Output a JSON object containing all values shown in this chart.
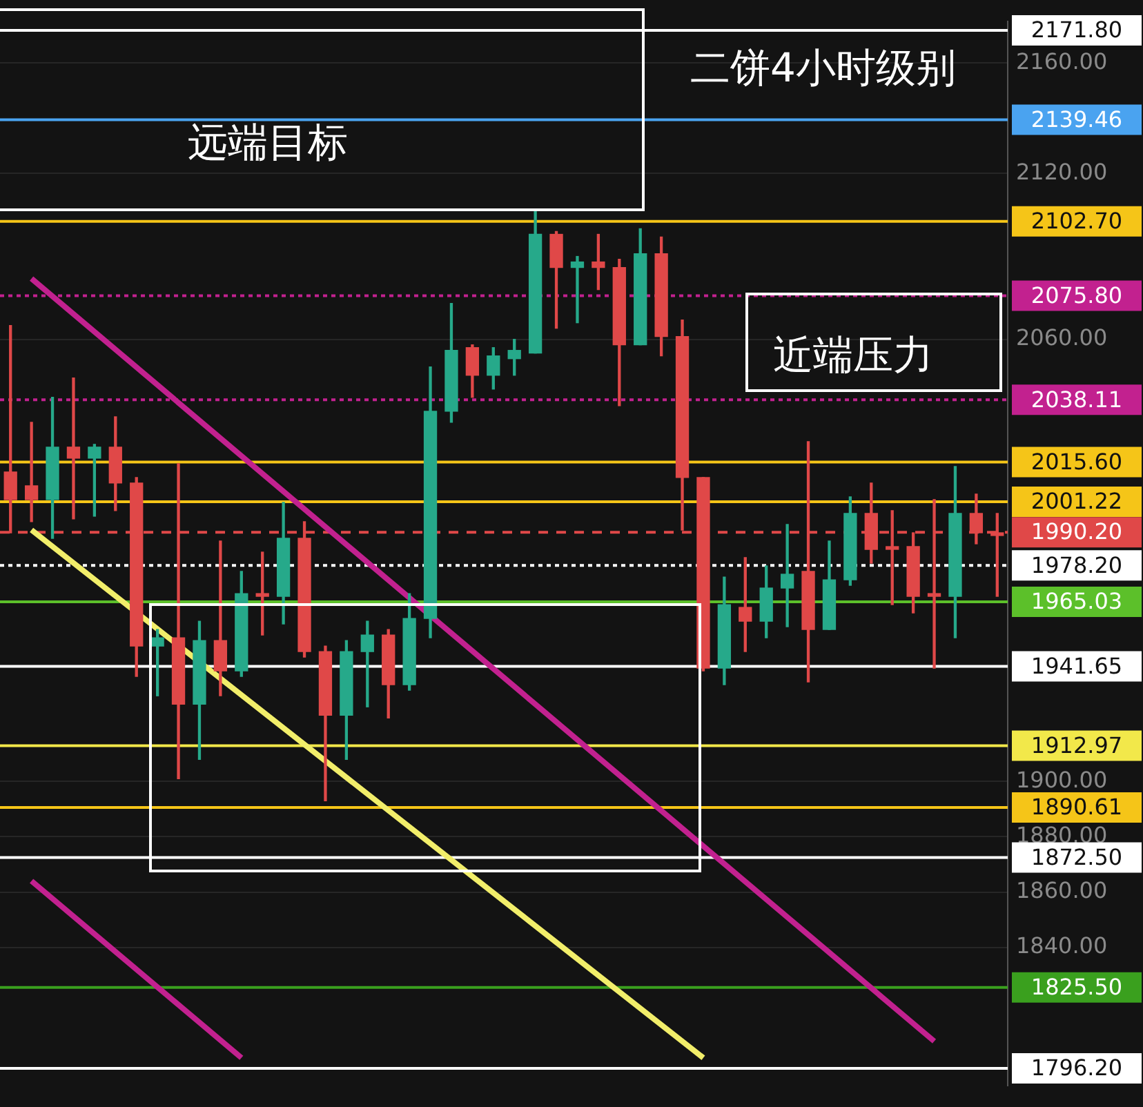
{
  "chart_data": {
    "type": "candlestick",
    "title": "二饼4小时级别",
    "annotations": [
      "远端目标",
      "近端压力"
    ],
    "categories": [
      null,
      null,
      null,
      null,
      null,
      null,
      null,
      null,
      null,
      null,
      null,
      null,
      null,
      null,
      null,
      null,
      null,
      null,
      null,
      null,
      null,
      null,
      null,
      null,
      null,
      null,
      null,
      null,
      null,
      null,
      null,
      null,
      null,
      null,
      null,
      null,
      null,
      null,
      null,
      null,
      null,
      null,
      null,
      null,
      null,
      null,
      null,
      null
    ],
    "ohlc": [
      [
        2012,
        2065,
        1990,
        2002
      ],
      [
        2007,
        2030,
        1994,
        2002
      ],
      [
        2002,
        2039,
        1988,
        2021
      ],
      [
        2021,
        2046,
        1995,
        2017
      ],
      [
        2017,
        2022,
        1996,
        2021
      ],
      [
        2021,
        2032,
        1998,
        2008
      ],
      [
        2008,
        2010,
        1938,
        1949
      ],
      [
        1949,
        1955,
        1931,
        1952
      ],
      [
        1952,
        2015,
        1901,
        1928
      ],
      [
        1928,
        1958,
        1908,
        1951
      ],
      [
        1951,
        1987,
        1931,
        1940
      ],
      [
        1940,
        1976,
        1938,
        1968
      ],
      [
        1968,
        1983,
        1953,
        1967
      ],
      [
        1967,
        2001,
        1957,
        1988
      ],
      [
        1988,
        1994,
        1945,
        1947
      ],
      [
        1947,
        1949,
        1893,
        1924
      ],
      [
        1924,
        1951,
        1908,
        1947
      ],
      [
        1947,
        1958,
        1927,
        1953
      ],
      [
        1953,
        1955,
        1923,
        1935
      ],
      [
        1935,
        1968,
        1933,
        1959
      ],
      [
        1959,
        2050,
        1952,
        2034
      ],
      [
        2034,
        2073,
        2030,
        2056
      ],
      [
        2057,
        2058,
        2039,
        2047
      ],
      [
        2047,
        2057,
        2042,
        2054
      ],
      [
        2053,
        2060,
        2047,
        2056
      ],
      [
        2055,
        2107,
        2055,
        2098
      ],
      [
        2098,
        2099,
        2064,
        2086
      ],
      [
        2086,
        2090,
        2066,
        2088
      ],
      [
        2088,
        2098,
        2078,
        2086
      ],
      [
        2086,
        2089,
        2036,
        2058
      ],
      [
        2058,
        2100,
        2058,
        2091
      ],
      [
        2091,
        2097,
        2054,
        2061
      ],
      [
        2061,
        2067,
        1991,
        2010
      ],
      [
        2010,
        2010,
        1940,
        1941
      ],
      [
        1941,
        1974,
        1935,
        1964
      ],
      [
        1963,
        1981,
        1947,
        1958
      ],
      [
        1958,
        1978,
        1952,
        1970
      ],
      [
        1970,
        1993,
        1956,
        1975
      ],
      [
        1976,
        2023,
        1936,
        1955
      ],
      [
        1955,
        1987,
        1955,
        1973
      ],
      [
        1973,
        2003,
        1971,
        1997
      ],
      [
        1997,
        2008,
        1979,
        1984
      ],
      [
        1985,
        1998,
        1964,
        1984
      ],
      [
        1985,
        1990,
        1961,
        1967
      ],
      [
        1968,
        2002,
        1941,
        1967
      ],
      [
        1967,
        2014,
        1952,
        1997
      ],
      [
        1997,
        2004,
        1986,
        1990
      ],
      [
        1990,
        1997,
        1967,
        1989
      ]
    ],
    "series": [
      {
        "type": "line",
        "color": "#c2218f",
        "values": [
          null,
          2082,
          null,
          null,
          null,
          null,
          null,
          null,
          null,
          null,
          null,
          null,
          null,
          null,
          null,
          null,
          null,
          null,
          null,
          null,
          null,
          null,
          null,
          null,
          null,
          null,
          null,
          null,
          null,
          null,
          null,
          null,
          null,
          null,
          null,
          null,
          null,
          null,
          null,
          null,
          null,
          null,
          null,
          null,
          1806,
          null,
          null,
          null
        ]
      },
      {
        "type": "line",
        "color": "#c2218f",
        "values": [
          null,
          1864,
          null,
          null,
          null,
          null,
          null,
          null,
          null,
          null,
          null,
          1800,
          null,
          null,
          null,
          null,
          null,
          null,
          null,
          null,
          null,
          null,
          null,
          null,
          null,
          null,
          null,
          null,
          null,
          null,
          null,
          null,
          null,
          null,
          null,
          null,
          null,
          null,
          null,
          null,
          null,
          null,
          null,
          null,
          null,
          null,
          null,
          null
        ]
      },
      {
        "type": "line",
        "color": "#f2ee6a",
        "values": [
          null,
          1991,
          null,
          null,
          null,
          null,
          null,
          null,
          null,
          null,
          null,
          null,
          null,
          null,
          null,
          null,
          null,
          null,
          null,
          null,
          null,
          null,
          null,
          null,
          null,
          null,
          null,
          null,
          null,
          null,
          null,
          null,
          null,
          1800,
          null,
          null,
          null,
          null,
          null,
          null,
          null,
          null,
          null,
          null,
          null,
          null,
          null,
          null
        ]
      }
    ],
    "ylim": [
      1790,
      2175
    ],
    "yticks": [
      {
        "value": 2160,
        "label": "2160.00"
      },
      {
        "value": 2120,
        "label": "2120.00"
      },
      {
        "value": 2060,
        "label": "2060.00"
      },
      {
        "value": 1900,
        "label": "1900.00"
      },
      {
        "value": 1880,
        "label": "1880.00"
      },
      {
        "value": 1860,
        "label": "1860.00"
      },
      {
        "value": 1840,
        "label": "1840.00"
      }
    ],
    "grid": "y",
    "legend": false,
    "tick_labels": "y",
    "ref_lines": [
      {
        "axis": "y",
        "value": 2171.8,
        "label": "2171.80",
        "color": "#ffffff",
        "line_style": "solid"
      },
      {
        "axis": "y",
        "value": 2139.46,
        "label": "2139.46",
        "color": "#4aa3f0",
        "line_style": "solid"
      },
      {
        "axis": "y",
        "value": 2102.7,
        "label": "2102.70",
        "color": "#f5c518",
        "line_style": "solid"
      },
      {
        "axis": "y",
        "value": 2075.8,
        "label": "2075.80",
        "color": "#c2218f",
        "line_style": "dotted"
      },
      {
        "axis": "y",
        "value": 2038.11,
        "label": "2038.11",
        "color": "#c2218f",
        "line_style": "dotted"
      },
      {
        "axis": "y",
        "value": 2015.6,
        "label": "2015.60",
        "color": "#f5c518",
        "line_style": "solid"
      },
      {
        "axis": "y",
        "value": 2001.22,
        "label": "2001.22",
        "color": "#f5c518",
        "line_style": "solid"
      },
      {
        "axis": "y",
        "value": 1990.2,
        "label": "1990.20",
        "color": "#e04848",
        "line_style": "dashed"
      },
      {
        "axis": "y",
        "value": 1978.2,
        "label": "1978.20",
        "color": "#ffffff",
        "line_style": "dotted"
      },
      {
        "axis": "y",
        "value": 1965.03,
        "label": "1965.03",
        "color": "#5cc02a",
        "line_style": "solid"
      },
      {
        "axis": "y",
        "value": 1941.65,
        "label": "1941.65",
        "color": "#ffffff",
        "line_style": "solid"
      },
      {
        "axis": "y",
        "value": 1912.97,
        "label": "1912.97",
        "color": "#f2e84a",
        "line_style": "solid"
      },
      {
        "axis": "y",
        "value": 1890.61,
        "label": "1890.61",
        "color": "#f5c518",
        "line_style": "solid"
      },
      {
        "axis": "y",
        "value": 1872.5,
        "label": "1872.50",
        "color": "#ffffff",
        "line_style": "solid"
      },
      {
        "axis": "y",
        "value": 1825.5,
        "label": "1825.50",
        "color": "#3aa01e",
        "line_style": "solid"
      },
      {
        "axis": "y",
        "value": 1796.2,
        "label": "1796.20",
        "color": "#ffffff",
        "line_style": "solid"
      }
    ]
  }
}
